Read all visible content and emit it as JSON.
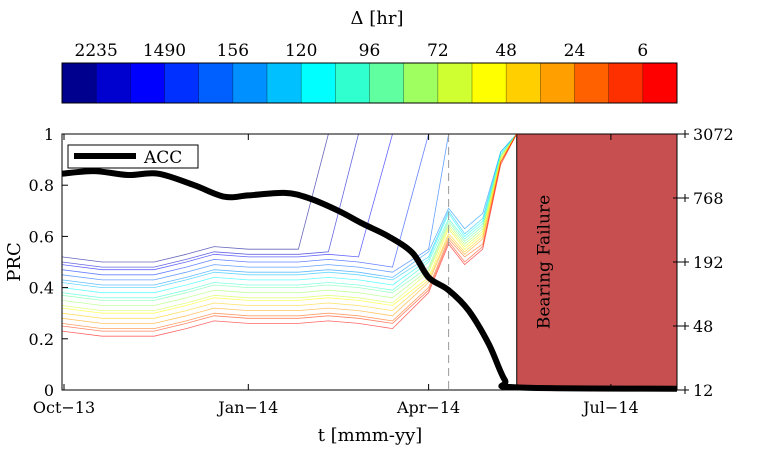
{
  "chart_data": {
    "type": "line",
    "xlabel": "t [mmm-yy]",
    "ylabel": "PRC",
    "xlim": [
      "2013-09-30",
      "2014-08-03"
    ],
    "ylim": [
      0,
      1
    ],
    "x_ticks": [
      {
        "date": "2013-10-01",
        "label": "Oct−13"
      },
      {
        "date": "2014-01-01",
        "label": "Jan−14"
      },
      {
        "date": "2014-04-01",
        "label": "Apr−14"
      },
      {
        "date": "2014-07-01",
        "label": "Jul−14"
      }
    ],
    "y_ticks": [
      "0",
      "0.2",
      "0.4",
      "0.6",
      "0.8",
      "1"
    ],
    "y_right": {
      "scale": "log",
      "lim": [
        12,
        3072
      ],
      "ticks": [
        "12",
        "48",
        "192",
        "768",
        "3072"
      ]
    },
    "grid": false,
    "colorbar": {
      "title": "Δ [hr]",
      "colors": [
        "#00008f",
        "#0000cf",
        "#0000ff",
        "#0030ff",
        "#0060ff",
        "#0090ff",
        "#00c0ff",
        "#00ffff",
        "#30ffcf",
        "#60ff9f",
        "#9fff60",
        "#cfff30",
        "#ffff00",
        "#ffcf00",
        "#ff9f00",
        "#ff6000",
        "#ff3000",
        "#ff0000"
      ],
      "labels": [
        "2235",
        "1490",
        "156",
        "120",
        "96",
        "72",
        "48",
        "24",
        "6"
      ]
    },
    "legend": {
      "position": "top-left",
      "entries": [
        "ACC"
      ]
    },
    "acc": {
      "name": "ACC",
      "color": "#000000",
      "x": [
        "2013-09-30",
        "2013-10-16",
        "2013-11-02",
        "2013-11-17",
        "2013-12-05",
        "2013-12-20",
        "2014-01-01",
        "2014-01-19",
        "2014-01-31",
        "2014-02-15",
        "2014-02-27",
        "2014-03-12",
        "2014-03-24",
        "2014-04-01",
        "2014-04-11",
        "2014-04-21",
        "2014-05-01",
        "2014-05-09",
        "2014-05-15",
        "2014-08-03"
      ],
      "values": [
        0.845,
        0.855,
        0.84,
        0.845,
        0.8,
        0.755,
        0.76,
        0.77,
        0.75,
        0.7,
        0.65,
        0.6,
        0.535,
        0.44,
        0.39,
        0.31,
        0.18,
        0.04,
        0.01,
        0.005
      ]
    },
    "prc_x": [
      "2013-09-30",
      "2013-10-20",
      "2013-11-15",
      "2013-12-01",
      "2013-12-15",
      "2014-01-01",
      "2014-01-20",
      "2014-01-26",
      "2014-02-10",
      "2014-02-25",
      "2014-03-14",
      "2014-04-01",
      "2014-04-11",
      "2014-04-19",
      "2014-04-28",
      "2014-05-07",
      "2014-05-15"
    ],
    "prc_series": [
      [
        0.52,
        0.5,
        0.5,
        0.53,
        0.56,
        0.55,
        0.55,
        0.55,
        1,
        1,
        1,
        1,
        1,
        1,
        1,
        1,
        1
      ],
      [
        0.5,
        0.48,
        0.48,
        0.51,
        0.54,
        0.53,
        0.53,
        0.53,
        0.54,
        1,
        1,
        1,
        1,
        1,
        1,
        1,
        1
      ],
      [
        0.49,
        0.47,
        0.47,
        0.5,
        0.53,
        0.52,
        0.52,
        0.52,
        0.53,
        0.52,
        1,
        1,
        1,
        1,
        1,
        1,
        1
      ],
      [
        0.47,
        0.45,
        0.45,
        0.48,
        0.51,
        0.5,
        0.5,
        0.5,
        0.51,
        0.5,
        0.48,
        1,
        1,
        1,
        1,
        1,
        1
      ],
      [
        0.45,
        0.43,
        0.43,
        0.46,
        0.49,
        0.48,
        0.48,
        0.48,
        0.49,
        0.48,
        0.46,
        0.55,
        1,
        1,
        1,
        1,
        1
      ],
      [
        0.43,
        0.41,
        0.41,
        0.44,
        0.47,
        0.46,
        0.46,
        0.46,
        0.47,
        0.46,
        0.44,
        0.54,
        0.71,
        0.63,
        0.69,
        0.93,
        1
      ],
      [
        0.42,
        0.4,
        0.4,
        0.43,
        0.46,
        0.45,
        0.45,
        0.45,
        0.46,
        0.45,
        0.43,
        0.52,
        0.7,
        0.61,
        0.67,
        0.93,
        1
      ],
      [
        0.4,
        0.38,
        0.38,
        0.41,
        0.44,
        0.43,
        0.43,
        0.43,
        0.44,
        0.43,
        0.41,
        0.51,
        0.69,
        0.6,
        0.66,
        0.92,
        1
      ],
      [
        0.38,
        0.36,
        0.36,
        0.39,
        0.42,
        0.41,
        0.41,
        0.41,
        0.42,
        0.41,
        0.39,
        0.5,
        0.67,
        0.59,
        0.65,
        0.92,
        1
      ],
      [
        0.37,
        0.35,
        0.35,
        0.38,
        0.41,
        0.4,
        0.4,
        0.4,
        0.41,
        0.4,
        0.38,
        0.48,
        0.66,
        0.58,
        0.64,
        0.91,
        1
      ],
      [
        0.35,
        0.33,
        0.33,
        0.36,
        0.39,
        0.38,
        0.38,
        0.38,
        0.39,
        0.38,
        0.36,
        0.47,
        0.65,
        0.57,
        0.63,
        0.91,
        1
      ],
      [
        0.33,
        0.31,
        0.31,
        0.34,
        0.37,
        0.36,
        0.36,
        0.36,
        0.37,
        0.36,
        0.34,
        0.46,
        0.64,
        0.56,
        0.62,
        0.91,
        1
      ],
      [
        0.32,
        0.3,
        0.3,
        0.33,
        0.36,
        0.35,
        0.35,
        0.35,
        0.36,
        0.35,
        0.33,
        0.44,
        0.63,
        0.55,
        0.61,
        0.9,
        1
      ],
      [
        0.3,
        0.28,
        0.28,
        0.31,
        0.34,
        0.33,
        0.33,
        0.33,
        0.34,
        0.33,
        0.31,
        0.43,
        0.61,
        0.54,
        0.6,
        0.9,
        1
      ],
      [
        0.28,
        0.26,
        0.26,
        0.29,
        0.32,
        0.31,
        0.31,
        0.31,
        0.32,
        0.31,
        0.29,
        0.42,
        0.6,
        0.53,
        0.59,
        0.89,
        1
      ],
      [
        0.26,
        0.24,
        0.24,
        0.27,
        0.3,
        0.29,
        0.29,
        0.29,
        0.3,
        0.29,
        0.27,
        0.4,
        0.59,
        0.52,
        0.57,
        0.89,
        1
      ],
      [
        0.25,
        0.23,
        0.23,
        0.26,
        0.29,
        0.28,
        0.28,
        0.28,
        0.29,
        0.28,
        0.26,
        0.39,
        0.58,
        0.5,
        0.56,
        0.89,
        1
      ],
      [
        0.23,
        0.21,
        0.21,
        0.24,
        0.27,
        0.26,
        0.26,
        0.26,
        0.27,
        0.26,
        0.24,
        0.38,
        0.57,
        0.49,
        0.55,
        0.88,
        1
      ]
    ],
    "vertical_marker": {
      "date": "2014-04-11",
      "style": "dashed"
    },
    "failure_region": {
      "start": "2014-05-15",
      "end": "2014-08-03",
      "label": "Bearing Failure",
      "color": "#c84f4f"
    }
  }
}
